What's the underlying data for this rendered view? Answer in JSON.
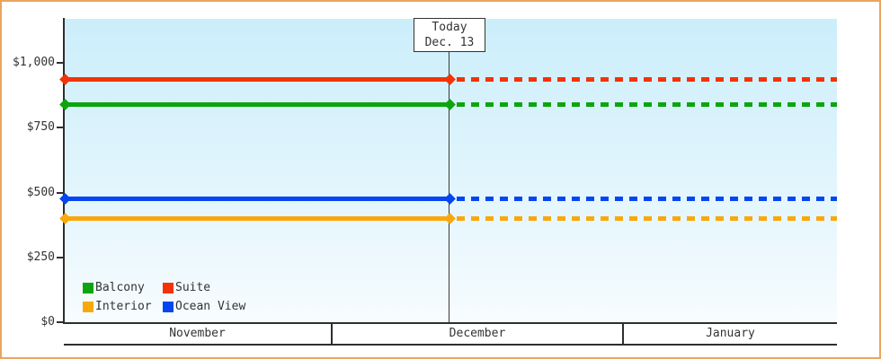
{
  "frame": {
    "border_color": "#eaa55e",
    "background": "#ffffff",
    "text_color": "#333333"
  },
  "chart_data": {
    "type": "line",
    "title": "",
    "ylabel": "",
    "xlabel": "",
    "ylim": [
      0,
      1170
    ],
    "grid": "off",
    "plot_background": "light-blue vertical gradient",
    "y_axis_ticks": [
      {
        "label": "$0",
        "value": 0
      },
      {
        "label": "$250",
        "value": 250
      },
      {
        "label": "$500",
        "value": 500
      },
      {
        "label": "$750",
        "value": 750
      },
      {
        "label": "$1,000",
        "value": 1000
      }
    ],
    "x_months": [
      {
        "label": "November",
        "width_frac": 0.3477
      },
      {
        "label": "December",
        "width_frac": 0.3767
      },
      {
        "label": "January",
        "width_frac": 0.2756
      }
    ],
    "today": {
      "line1": "Today",
      "line2": "Dec. 13",
      "x_frac": 0.498,
      "style_before_today": "solid",
      "style_after_today": "dotted"
    },
    "series": [
      {
        "name": "Suite",
        "color": "#f43208",
        "value": 935
      },
      {
        "name": "Balcony",
        "color": "#0da50d",
        "value": 838
      },
      {
        "name": "Ocean View",
        "color": "#0546f2",
        "value": 476
      },
      {
        "name": "Interior",
        "color": "#f9a80c",
        "value": 400
      }
    ],
    "legend": {
      "position": "bottom-left-inside",
      "items": [
        {
          "label": "Balcony",
          "color": "#0da50d"
        },
        {
          "label": "Suite",
          "color": "#f43208"
        },
        {
          "label": "Interior",
          "color": "#f9a80c"
        },
        {
          "label": "Ocean View",
          "color": "#0546f2"
        }
      ]
    }
  }
}
